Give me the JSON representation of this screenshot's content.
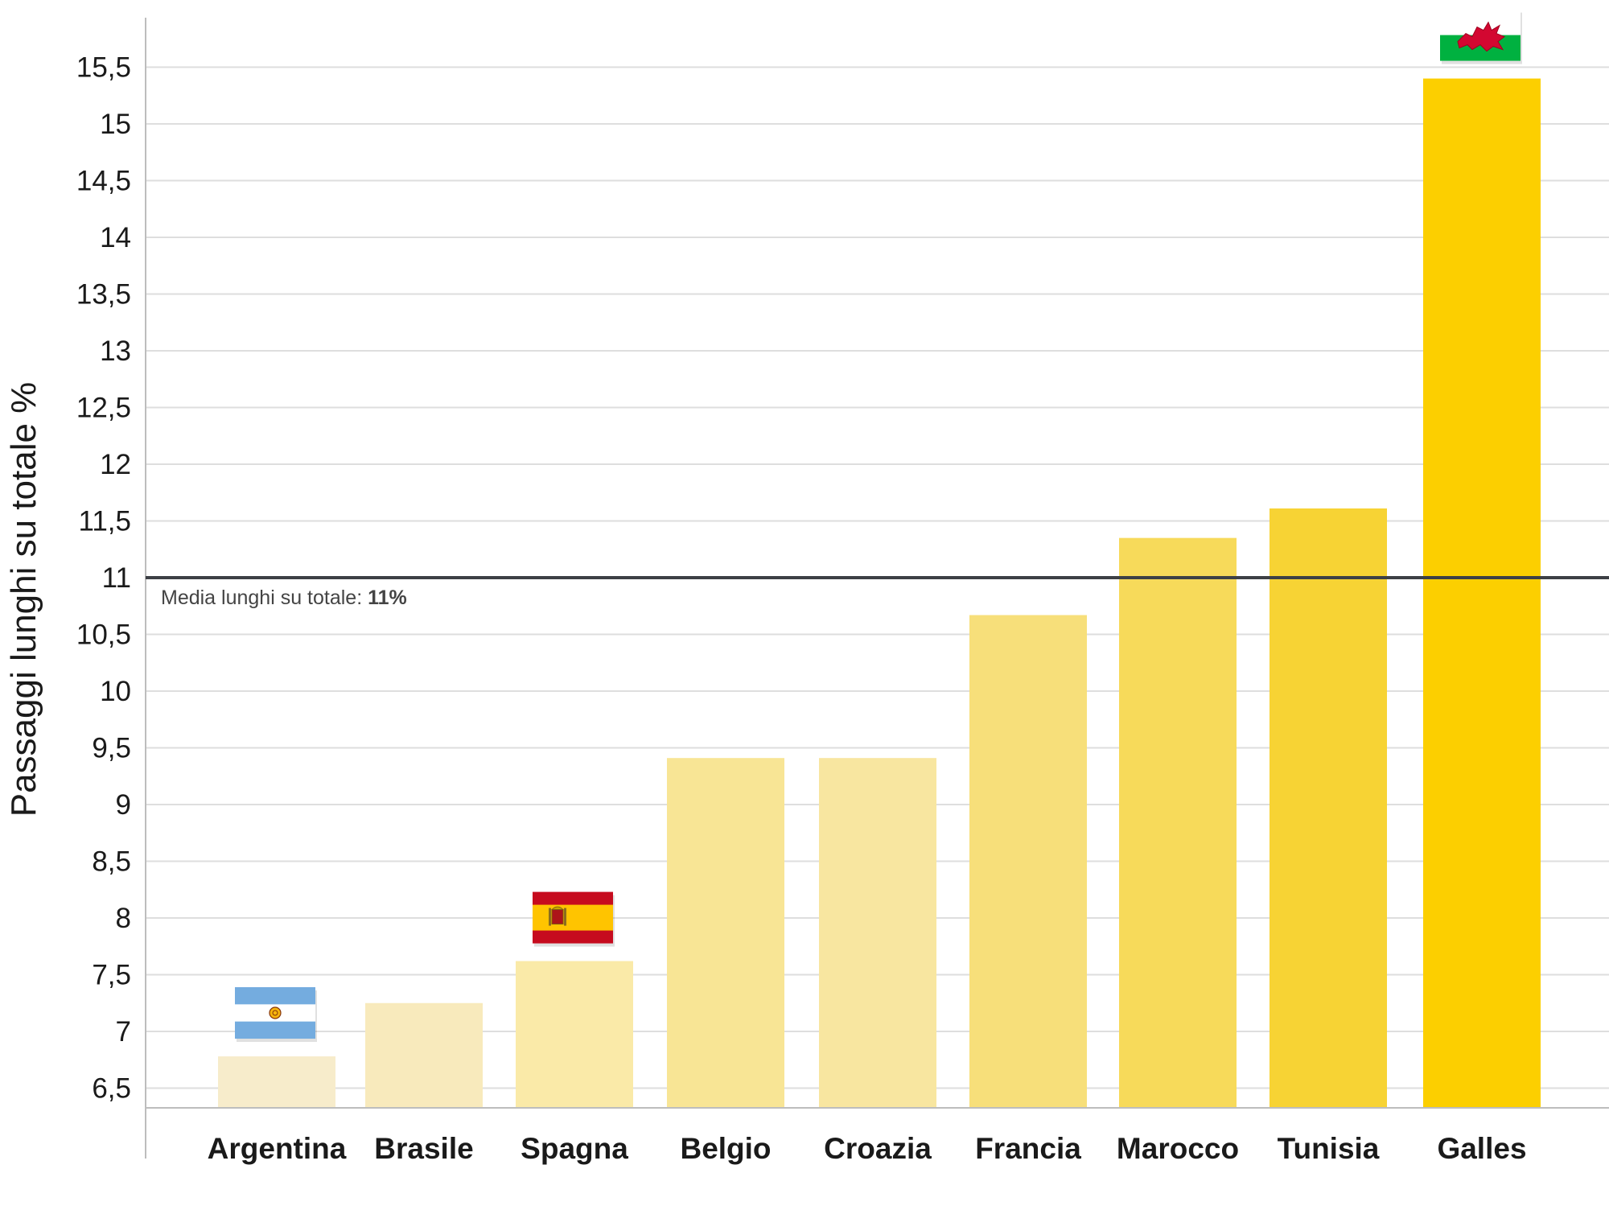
{
  "chart_data": {
    "type": "bar",
    "ylabel": "Passaggi lunghi su totale %",
    "categories": [
      "Argentina",
      "Brasile",
      "Spagna",
      "Belgio",
      "Croazia",
      "Francia",
      "Marocco",
      "Tunisia",
      "Galles"
    ],
    "values": [
      6.78,
      7.25,
      7.62,
      9.41,
      9.41,
      10.67,
      11.35,
      11.61,
      15.4
    ],
    "bar_colors": [
      "#f7eccb",
      "#f8eabc",
      "#faeaa8",
      "#f8e595",
      "#f8e6a0",
      "#f7df7a",
      "#f7da5a",
      "#f7d334",
      "#fccf00"
    ],
    "yticks": [
      6.5,
      7,
      7.5,
      8,
      8.5,
      9,
      9.5,
      10,
      10.5,
      11,
      11.5,
      12,
      12.5,
      13,
      13.5,
      14,
      14.5,
      15,
      15.5
    ],
    "ytick_labels": [
      "6,5",
      "7",
      "7,5",
      "8",
      "8,5",
      "9",
      "9,5",
      "10",
      "10,5",
      "11",
      "11,5",
      "12",
      "12,5",
      "13",
      "13,5",
      "14",
      "14,5",
      "15",
      "15,5"
    ],
    "ylim": [
      6.3,
      15.95
    ],
    "grid": true,
    "reference_line": {
      "value": 11,
      "label": "Media lunghi su totale: ",
      "value_label": "11%",
      "color": "#3d4045"
    },
    "flags": [
      {
        "category": "Argentina",
        "icon": "argentina-flag-icon"
      },
      {
        "category": "Spagna",
        "icon": "spain-flag-icon"
      },
      {
        "category": "Galles",
        "icon": "wales-flag-icon"
      }
    ]
  }
}
